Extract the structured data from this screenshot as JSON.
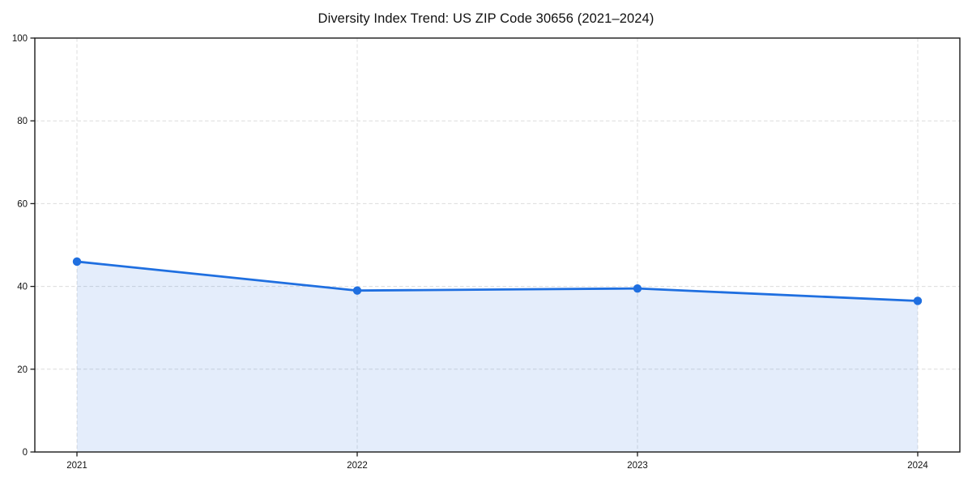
{
  "chart": {
    "title": "Diversity Index Trend: US ZIP Code 30656 (2021–2024)"
  },
  "chart_data": {
    "type": "line",
    "title": "Diversity Index Trend: US ZIP Code 30656 (2021–2024)",
    "categories": [
      "2021",
      "2022",
      "2023",
      "2024"
    ],
    "series": [
      {
        "name": "Diversity Index",
        "values": [
          46,
          39,
          39.5,
          36.5
        ]
      }
    ],
    "xlabel": "",
    "ylabel": "",
    "ylim": [
      0,
      100
    ],
    "yticks": [
      0,
      20,
      40,
      60,
      80,
      100
    ],
    "grid": true,
    "grid_style": "dashed",
    "legend": false,
    "marker": "circle",
    "area_fill": true,
    "colors": {
      "line": "#1f6fe0",
      "marker": "#1f6fe0",
      "fill": "#1f6fe0",
      "fill_opacity": 0.12,
      "grid": "#dcdcdc",
      "axis": "#1a1a1a",
      "text": "#111111"
    }
  }
}
